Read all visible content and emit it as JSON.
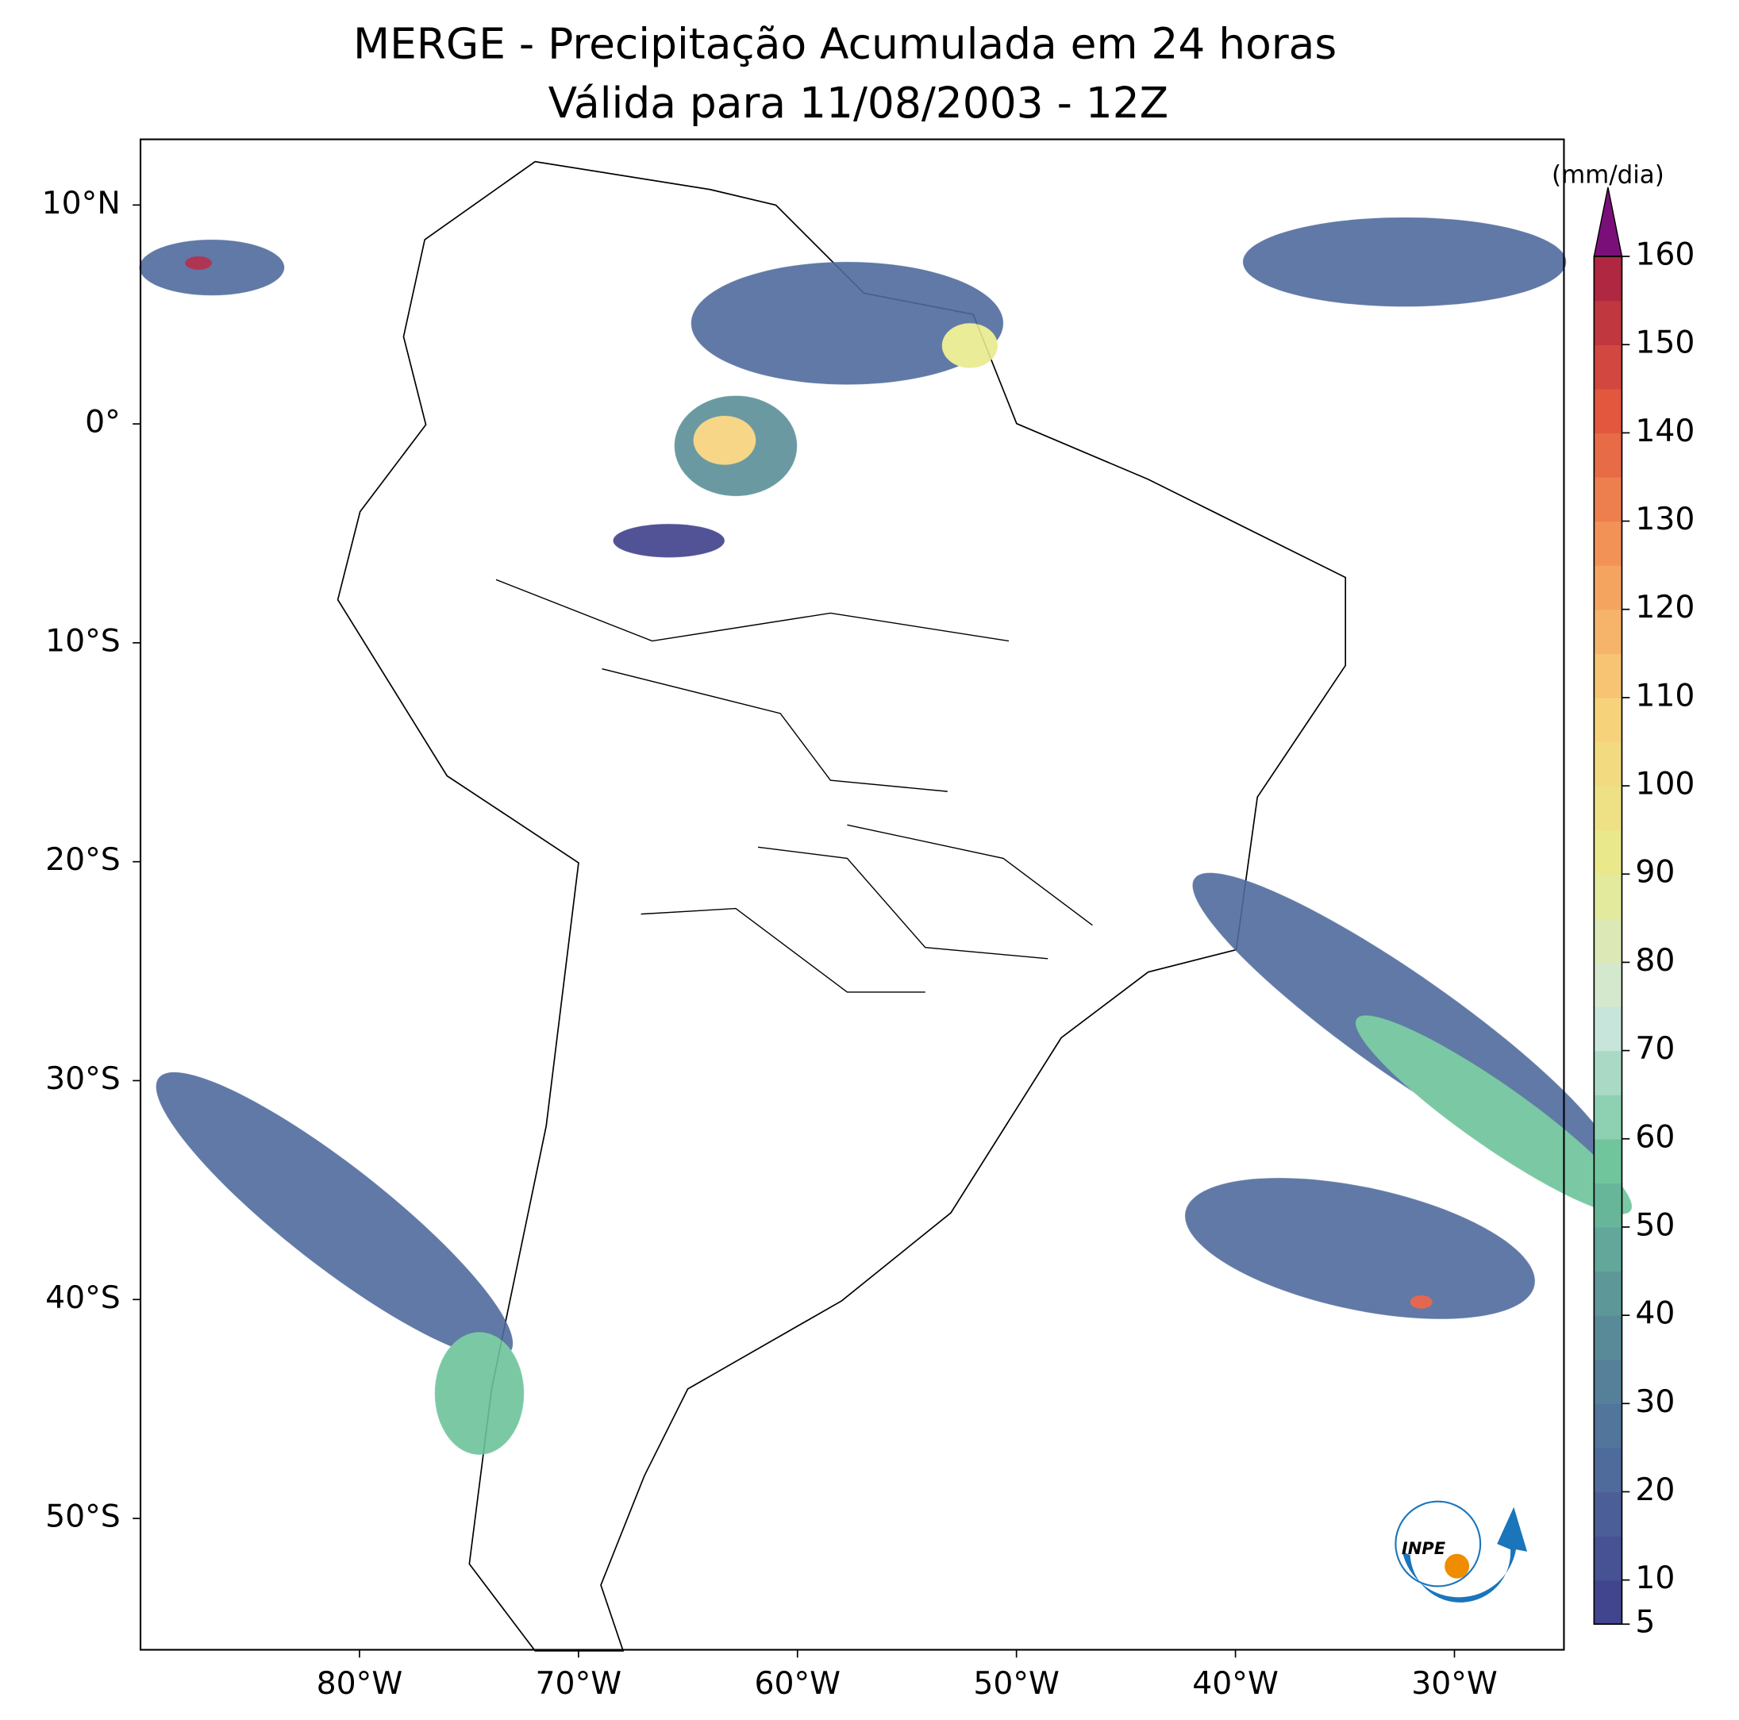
{
  "header": {
    "title": "MERGE - Precipitação Acumulada em 24 horas",
    "subtitle": "Válida para 11/08/2003 - 12Z"
  },
  "map": {
    "xlim": [
      -90,
      -25
    ],
    "ylim": [
      -56,
      13
    ],
    "xticks": [
      {
        "value": -80,
        "label": "80°W"
      },
      {
        "value": -70,
        "label": "70°W"
      },
      {
        "value": -60,
        "label": "60°W"
      },
      {
        "value": -50,
        "label": "50°W"
      },
      {
        "value": -40,
        "label": "40°W"
      },
      {
        "value": -30,
        "label": "30°W"
      }
    ],
    "yticks": [
      {
        "value": 10,
        "label": "10°N"
      },
      {
        "value": 0,
        "label": "0°"
      },
      {
        "value": -10,
        "label": "10°S"
      },
      {
        "value": -20,
        "label": "20°S"
      },
      {
        "value": -30,
        "label": "30°S"
      },
      {
        "value": -40,
        "label": "40°S"
      },
      {
        "value": -50,
        "label": "50°S"
      }
    ]
  },
  "colorbar": {
    "label": "(mm/dia)",
    "lim": [
      5,
      160
    ],
    "step": 5,
    "ticks": [
      5,
      10,
      20,
      30,
      40,
      50,
      60,
      70,
      80,
      90,
      100,
      110,
      120,
      130,
      140,
      150,
      160
    ],
    "colors": [
      "#3f3f8c",
      "#4f6a9c",
      "#5a8e98",
      "#6cc39a",
      "#cfe8e0",
      "#e8ea8c",
      "#f7d27a",
      "#f49a5a",
      "#e2563e",
      "#a81f42"
    ],
    "extend_color": "#7b0f7a"
  },
  "logo": {
    "text": "INPE"
  }
}
